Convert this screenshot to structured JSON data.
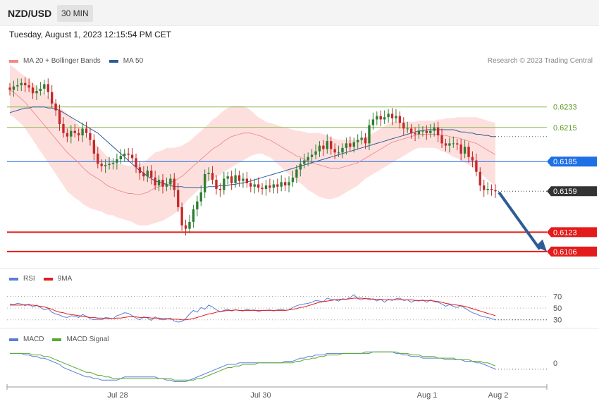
{
  "header": {
    "symbol": "NZD/USD",
    "timeframe": "30 MIN"
  },
  "datetime": "Tuesday, August 1, 2023 12:15:54 PM CET",
  "legend": {
    "ma20": {
      "label": "MA 20 + Bollinger Bands",
      "color": "#f08a8a"
    },
    "ma50": {
      "label": "MA 50",
      "color": "#2e5c9a"
    }
  },
  "copyright": "Research © 2023 Trading Central",
  "rsi_legend": {
    "rsi": "RSI",
    "ma": "9MA"
  },
  "macd_legend": {
    "macd": "MACD",
    "signal": "MACD Signal"
  },
  "colors": {
    "up": "#2e7d32",
    "down": "#c62828",
    "bb_fill": "#fde0de",
    "ma20": "#f08a8a",
    "ma50": "#2e5c9a",
    "support": "#e31b1b",
    "resistance": "#8ab84a",
    "pivot": "#1f6fe5",
    "last": "#333333",
    "arrow": "#2d5c96",
    "rsi": "#5b7fd6",
    "rsi_ma": "#e31b1b",
    "macd": "#5b7fd6",
    "signal": "#59a832"
  },
  "chart_data": [
    {
      "type": "candlestick",
      "title": "NZD/USD",
      "x_ticks": [
        "Jul 28",
        "Jul 30",
        "Aug 1",
        "Aug 2"
      ],
      "ylim": [
        0.6096,
        0.6265
      ],
      "levels": [
        {
          "value": 0.6233,
          "label": "0.6233",
          "kind": "resistance"
        },
        {
          "value": 0.6215,
          "label": "0.6215",
          "kind": "resistance"
        },
        {
          "value": 0.6185,
          "label": "0.6185",
          "kind": "pivot"
        },
        {
          "value": 0.6159,
          "label": "0.6159",
          "kind": "last"
        },
        {
          "value": 0.6123,
          "label": "0.6123",
          "kind": "support"
        },
        {
          "value": 0.6106,
          "label": "0.6106",
          "kind": "support"
        }
      ],
      "close": [
        0.6248,
        0.6251,
        0.6252,
        0.6254,
        0.6252,
        0.625,
        0.6245,
        0.6247,
        0.6249,
        0.6253,
        0.6246,
        0.6236,
        0.623,
        0.6218,
        0.621,
        0.6207,
        0.6212,
        0.621,
        0.6208,
        0.6214,
        0.621,
        0.6204,
        0.6192,
        0.6183,
        0.6181,
        0.6182,
        0.6183,
        0.6184,
        0.6187,
        0.619,
        0.6192,
        0.6191,
        0.6188,
        0.618,
        0.6175,
        0.6172,
        0.6177,
        0.6171,
        0.6164,
        0.6169,
        0.6163,
        0.6165,
        0.617,
        0.616,
        0.6145,
        0.6129,
        0.6126,
        0.6132,
        0.6143,
        0.615,
        0.6158,
        0.6174,
        0.6175,
        0.6169,
        0.6161,
        0.616,
        0.617,
        0.6172,
        0.6166,
        0.6173,
        0.6168,
        0.617,
        0.6166,
        0.6163,
        0.6165,
        0.6162,
        0.6161,
        0.6164,
        0.6162,
        0.6165,
        0.6163,
        0.6167,
        0.6164,
        0.6167,
        0.6171,
        0.6178,
        0.6183,
        0.6186,
        0.6189,
        0.6191,
        0.6194,
        0.6199,
        0.6196,
        0.6203,
        0.6196,
        0.6193,
        0.6193,
        0.6197,
        0.6201,
        0.6198,
        0.6202,
        0.6204,
        0.6206,
        0.6201,
        0.6217,
        0.6222,
        0.6225,
        0.6222,
        0.6224,
        0.6227,
        0.6223,
        0.6225,
        0.6219,
        0.6214,
        0.6214,
        0.621,
        0.6209,
        0.6212,
        0.6212,
        0.621,
        0.6212,
        0.6215,
        0.6208,
        0.6201,
        0.6199,
        0.6201,
        0.6201,
        0.62,
        0.6192,
        0.6198,
        0.6189,
        0.6186,
        0.6176,
        0.6164,
        0.616,
        0.6161,
        0.616,
        0.6159
      ],
      "bb_mid": [
        0.6248,
        0.6246,
        0.6243,
        0.624,
        0.6237,
        0.6233,
        0.6229,
        0.6225,
        0.6221,
        0.6217,
        0.6213,
        0.6209,
        0.6205,
        0.6201,
        0.6197,
        0.6193,
        0.619,
        0.6187,
        0.6184,
        0.618,
        0.6177,
        0.6174,
        0.6172,
        0.617,
        0.6168,
        0.6165,
        0.6163,
        0.6162,
        0.616,
        0.6159,
        0.6158,
        0.6157,
        0.6157,
        0.6156,
        0.6156,
        0.6157,
        0.6158,
        0.616,
        0.6162,
        0.6163,
        0.6164,
        0.6166,
        0.6167,
        0.6168,
        0.617,
        0.6172,
        0.6175,
        0.6178,
        0.6181,
        0.6184,
        0.6187,
        0.619,
        0.6193,
        0.6196,
        0.6198,
        0.62,
        0.6203,
        0.6205,
        0.6207,
        0.6208,
        0.6209,
        0.621,
        0.621,
        0.621,
        0.6209,
        0.6208,
        0.6207,
        0.6205,
        0.6204,
        0.6202,
        0.62,
        0.6198,
        0.6196,
        0.6194,
        0.6192,
        0.619,
        0.6189,
        0.6187,
        0.6185,
        0.6184,
        0.6183,
        0.6182,
        0.6181,
        0.618,
        0.6179,
        0.6179,
        0.6179,
        0.618,
        0.6181,
        0.6182,
        0.6183,
        0.6184,
        0.6186,
        0.6188,
        0.619,
        0.6192,
        0.6194,
        0.6196,
        0.6198,
        0.62,
        0.6202,
        0.6203,
        0.6204,
        0.6205,
        0.6206,
        0.6207,
        0.6208,
        0.6209,
        0.6209,
        0.6209,
        0.6209,
        0.6209,
        0.6209,
        0.6208,
        0.6208,
        0.6207,
        0.6206,
        0.6206,
        0.6205,
        0.6204,
        0.6203,
        0.6202,
        0.6201,
        0.6199,
        0.6197,
        0.6195,
        0.6193,
        0.6191
      ],
      "bb_width": [
        0.0022,
        0.0022,
        0.0022,
        0.0022,
        0.0023,
        0.0024,
        0.0025,
        0.0026,
        0.0027,
        0.0028,
        0.0029,
        0.003,
        0.0031,
        0.0032,
        0.0033,
        0.0034,
        0.0034,
        0.0034,
        0.0033,
        0.0032,
        0.0031,
        0.003,
        0.0029,
        0.0028,
        0.0027,
        0.0026,
        0.0025,
        0.0024,
        0.0024,
        0.0024,
        0.0024,
        0.0024,
        0.0025,
        0.0026,
        0.0027,
        0.0028,
        0.0029,
        0.003,
        0.0031,
        0.0031,
        0.0031,
        0.0031,
        0.003,
        0.0029,
        0.0028,
        0.0027,
        0.0026,
        0.0025,
        0.0025,
        0.0025,
        0.0025,
        0.0025,
        0.0025,
        0.0026,
        0.0026,
        0.0027,
        0.0027,
        0.0027,
        0.0027,
        0.0026,
        0.0025,
        0.0024,
        0.0022,
        0.002,
        0.0018,
        0.0016,
        0.0015,
        0.0015,
        0.0015,
        0.0016,
        0.0017,
        0.0018,
        0.0019,
        0.002,
        0.0021,
        0.0022,
        0.0023,
        0.0024,
        0.0025,
        0.0026,
        0.0027,
        0.0028,
        0.0028,
        0.0028,
        0.0027,
        0.0026,
        0.0025,
        0.0024,
        0.0023,
        0.0022,
        0.0021,
        0.002,
        0.0019,
        0.0018,
        0.0018,
        0.0018,
        0.0018,
        0.0018,
        0.0018,
        0.0018,
        0.0018,
        0.0017,
        0.0016,
        0.0015,
        0.0014,
        0.0013,
        0.0012,
        0.0012,
        0.0012,
        0.0012,
        0.0012,
        0.0012,
        0.0013,
        0.0014,
        0.0015,
        0.0016,
        0.0017,
        0.0018,
        0.0019,
        0.002,
        0.0021,
        0.0022,
        0.0023,
        0.0024,
        0.0025,
        0.0026,
        0.0027,
        0.0028
      ],
      "ma50": [
        0.6228,
        0.6229,
        0.623,
        0.6231,
        0.6232,
        0.6232,
        0.6233,
        0.6233,
        0.6233,
        0.6233,
        0.6232,
        0.6232,
        0.6231,
        0.623,
        0.6228,
        0.6226,
        0.6224,
        0.6222,
        0.622,
        0.6218,
        0.6216,
        0.6214,
        0.6212,
        0.621,
        0.6207,
        0.6204,
        0.6201,
        0.6198,
        0.6195,
        0.6192,
        0.6189,
        0.6186,
        0.6183,
        0.618,
        0.6177,
        0.6175,
        0.6172,
        0.617,
        0.6168,
        0.6167,
        0.6166,
        0.6165,
        0.6164,
        0.6163,
        0.6163,
        0.6163,
        0.6162,
        0.6162,
        0.6162,
        0.6162,
        0.6162,
        0.6162,
        0.6163,
        0.6163,
        0.6163,
        0.6164,
        0.6164,
        0.6164,
        0.6165,
        0.6165,
        0.6166,
        0.6166,
        0.6167,
        0.6168,
        0.6169,
        0.617,
        0.6171,
        0.6172,
        0.6173,
        0.6174,
        0.6175,
        0.6176,
        0.6177,
        0.6178,
        0.6179,
        0.618,
        0.6181,
        0.6182,
        0.6183,
        0.6184,
        0.6185,
        0.6186,
        0.6187,
        0.6188,
        0.6189,
        0.619,
        0.6191,
        0.6192,
        0.6193,
        0.6194,
        0.6195,
        0.6196,
        0.6197,
        0.6198,
        0.6199,
        0.62,
        0.6201,
        0.6202,
        0.6203,
        0.6204,
        0.6205,
        0.6206,
        0.6207,
        0.6208,
        0.6209,
        0.621,
        0.6211,
        0.6212,
        0.6212,
        0.6213,
        0.6213,
        0.6213,
        0.6213,
        0.6213,
        0.6213,
        0.6213,
        0.6213,
        0.6212,
        0.6211,
        0.6211,
        0.621,
        0.621,
        0.6209,
        0.6209,
        0.6208,
        0.6208,
        0.6207,
        0.6207
      ]
    },
    {
      "type": "line",
      "title": "RSI",
      "y_ticks": [
        70,
        50,
        30
      ],
      "ylim": [
        20,
        85
      ],
      "series": [
        {
          "name": "RSI",
          "values": [
            57,
            56,
            58,
            57,
            54,
            57,
            52,
            55,
            51,
            47,
            49,
            43,
            40,
            38,
            35,
            34,
            37,
            36,
            34,
            39,
            36,
            32,
            30,
            31,
            30,
            34,
            33,
            32,
            37,
            39,
            42,
            41,
            37,
            33,
            30,
            35,
            33,
            29,
            35,
            31,
            30,
            31,
            33,
            28,
            26,
            27,
            32,
            40,
            46,
            43,
            51,
            48,
            55,
            52,
            47,
            44,
            46,
            48,
            45,
            47,
            46,
            45,
            48,
            46,
            47,
            44,
            46,
            46,
            47,
            45,
            47,
            48,
            46,
            47,
            51,
            54,
            56,
            57,
            58,
            60,
            63,
            62,
            61,
            67,
            65,
            64,
            62,
            66,
            65,
            68,
            73,
            66,
            64,
            67,
            64,
            66,
            62,
            65,
            60,
            65,
            63,
            66,
            67,
            63,
            64,
            60,
            63,
            62,
            64,
            60,
            64,
            61,
            60,
            57,
            53,
            56,
            53,
            51,
            54,
            50,
            46,
            42,
            40,
            37,
            35,
            34,
            32,
            30
          ]
        },
        {
          "name": "9MA",
          "values": [
            55,
            55,
            55,
            55,
            56,
            55,
            55,
            54,
            53,
            52,
            50,
            48,
            45,
            43,
            42,
            40,
            39,
            38,
            37,
            36,
            35,
            34,
            34,
            33,
            33,
            32,
            32,
            32,
            33,
            33,
            34,
            35,
            35,
            35,
            34,
            34,
            34,
            33,
            33,
            33,
            32,
            32,
            31,
            31,
            31,
            30,
            30,
            31,
            32,
            34,
            36,
            38,
            40,
            41,
            43,
            44,
            45,
            46,
            46,
            47,
            46,
            46,
            46,
            46,
            46,
            46,
            46,
            46,
            46,
            46,
            46,
            46,
            46,
            47,
            48,
            49,
            51,
            52,
            54,
            56,
            58,
            60,
            61,
            62,
            63,
            64,
            65,
            65,
            65,
            66,
            67,
            67,
            67,
            66,
            66,
            65,
            65,
            65,
            64,
            64,
            64,
            64,
            65,
            64,
            64,
            64,
            63,
            63,
            63,
            63,
            63,
            62,
            61,
            60,
            58,
            57,
            56,
            55,
            54,
            53,
            51,
            49,
            47,
            45,
            43,
            41,
            39,
            37
          ]
        }
      ]
    },
    {
      "type": "line",
      "title": "MACD",
      "y_ticks": [
        0
      ],
      "ylim": [
        -0.0014,
        0.0012
      ],
      "series": [
        {
          "name": "MACD",
          "values": [
            0.0006,
            0.0006,
            0.0006,
            0.0006,
            0.0005,
            0.0005,
            0.0004,
            0.0004,
            0.0003,
            0.0003,
            0.0002,
            0.0001,
            -0.0,
            -0.0001,
            -0.0003,
            -0.0004,
            -0.0005,
            -0.0006,
            -0.0007,
            -0.0008,
            -0.0009,
            -0.0009,
            -0.001,
            -0.001,
            -0.0011,
            -0.0011,
            -0.0011,
            -0.0011,
            -0.0011,
            -0.001,
            -0.0009,
            -0.0009,
            -0.0009,
            -0.0009,
            -0.0009,
            -0.0009,
            -0.0009,
            -0.0009,
            -0.0009,
            -0.001,
            -0.001,
            -0.0011,
            -0.0011,
            -0.0012,
            -0.0012,
            -0.0012,
            -0.0012,
            -0.0011,
            -0.001,
            -0.0009,
            -0.0008,
            -0.0007,
            -0.0006,
            -0.0005,
            -0.0004,
            -0.0003,
            -0.0002,
            -0.0001,
            -0.0001,
            -0.0001,
            -0.0,
            -0.0,
            -0.0,
            -0.0,
            -0.0,
            -0.0,
            -0.0,
            -0.0,
            -0.0,
            -0.0,
            -0.0,
            0.0,
            0.0001,
            0.0001,
            0.0001,
            0.0002,
            0.0003,
            0.0003,
            0.0004,
            0.0004,
            0.0005,
            0.0005,
            0.0005,
            0.0006,
            0.0006,
            0.0006,
            0.0006,
            0.0006,
            0.0006,
            0.0006,
            0.0006,
            0.0006,
            0.0006,
            0.0007,
            0.0007,
            0.0007,
            0.0007,
            0.0007,
            0.0007,
            0.0007,
            0.0007,
            0.0006,
            0.0006,
            0.0005,
            0.0005,
            0.0004,
            0.0004,
            0.0004,
            0.0003,
            0.0003,
            0.0003,
            0.0003,
            0.0003,
            0.0003,
            0.0002,
            0.0002,
            0.0002,
            0.0002,
            0.0002,
            0.0001,
            0.0001,
            0.0001,
            0.0,
            -0.0,
            -0.0001,
            -0.0002,
            -0.0003,
            -0.0004
          ]
        },
        {
          "name": "MACD Signal",
          "values": [
            0.0006,
            0.0006,
            0.0006,
            0.0006,
            0.0006,
            0.0006,
            0.0005,
            0.0005,
            0.0005,
            0.0004,
            0.0004,
            0.0003,
            0.0002,
            0.0001,
            -0.0,
            -0.0001,
            -0.0002,
            -0.0003,
            -0.0004,
            -0.0005,
            -0.0006,
            -0.0006,
            -0.0007,
            -0.0008,
            -0.0008,
            -0.0009,
            -0.0009,
            -0.001,
            -0.001,
            -0.001,
            -0.001,
            -0.001,
            -0.001,
            -0.001,
            -0.001,
            -0.001,
            -0.001,
            -0.001,
            -0.001,
            -0.001,
            -0.001,
            -0.001,
            -0.001,
            -0.0011,
            -0.0011,
            -0.0011,
            -0.0011,
            -0.0011,
            -0.0011,
            -0.001,
            -0.001,
            -0.0009,
            -0.0008,
            -0.0007,
            -0.0006,
            -0.0005,
            -0.0004,
            -0.0003,
            -0.0003,
            -0.0002,
            -0.0002,
            -0.0001,
            -0.0001,
            -0.0001,
            -0.0001,
            -0.0,
            -0.0,
            -0.0,
            -0.0,
            -0.0,
            -0.0,
            -0.0,
            -0.0,
            0.0,
            0.0,
            0.0001,
            0.0001,
            0.0002,
            0.0002,
            0.0003,
            0.0003,
            0.0004,
            0.0004,
            0.0005,
            0.0005,
            0.0005,
            0.0005,
            0.0006,
            0.0006,
            0.0006,
            0.0006,
            0.0006,
            0.0006,
            0.0006,
            0.0006,
            0.0007,
            0.0007,
            0.0007,
            0.0007,
            0.0007,
            0.0007,
            0.0007,
            0.0006,
            0.0006,
            0.0006,
            0.0005,
            0.0005,
            0.0005,
            0.0004,
            0.0004,
            0.0004,
            0.0004,
            0.0003,
            0.0003,
            0.0003,
            0.0003,
            0.0003,
            0.0002,
            0.0002,
            0.0002,
            0.0002,
            0.0001,
            0.0001,
            0.0001,
            0.0,
            -0.0,
            -0.0001,
            -0.0002
          ]
        }
      ]
    }
  ]
}
